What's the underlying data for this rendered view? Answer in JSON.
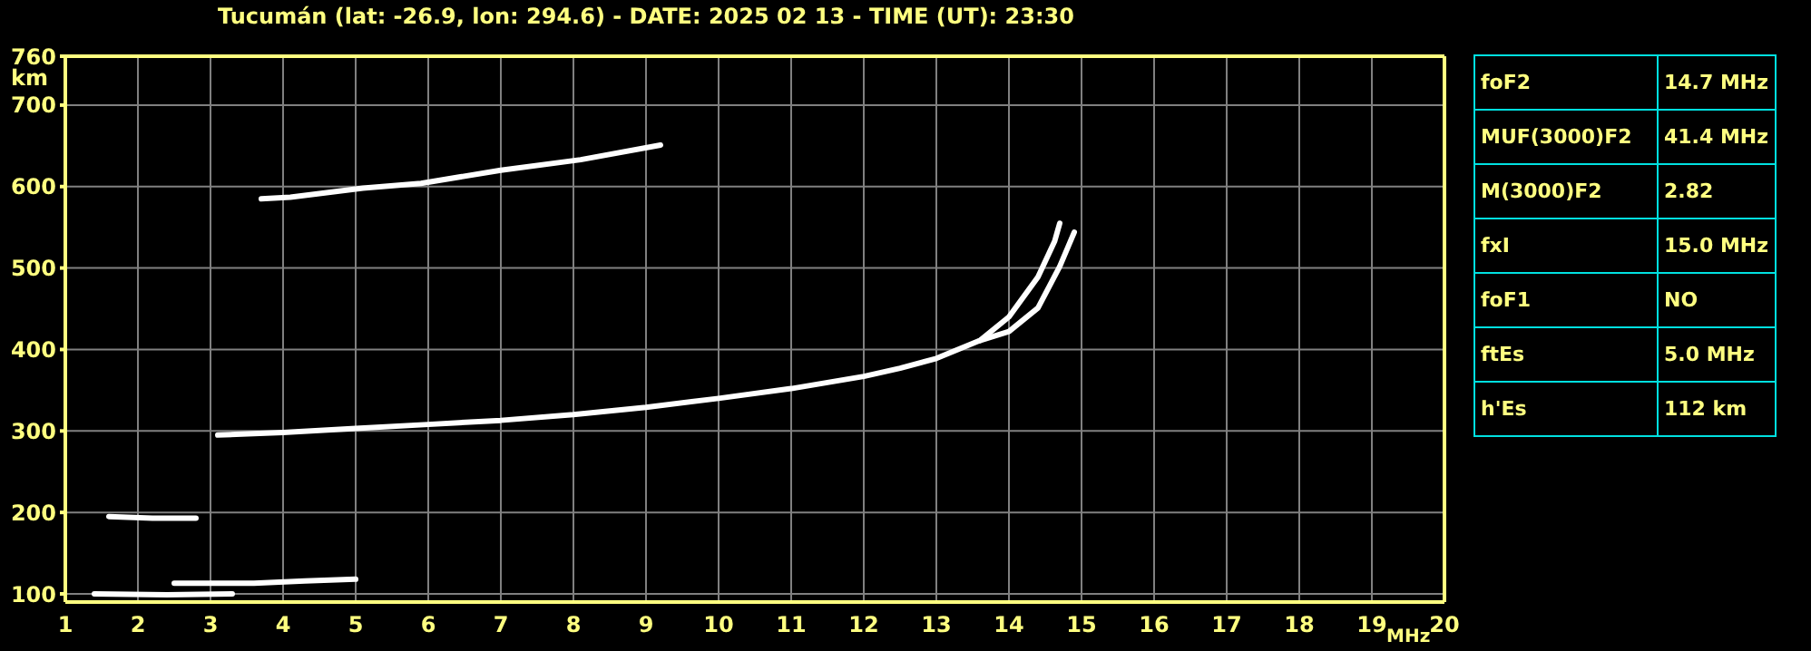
{
  "chart_data": {
    "type": "line",
    "title": "Tucumán (lat: -26.9, lon: 294.6) - DATE: 2025 02 13 - TIME (UT): 23:30",
    "xlabel": "MHz",
    "ylabel": "km",
    "xlim": [
      1,
      20
    ],
    "xticks": [
      1,
      2,
      3,
      4,
      5,
      6,
      7,
      8,
      9,
      10,
      11,
      12,
      13,
      14,
      15,
      16,
      17,
      18,
      19,
      20
    ],
    "ylim": [
      90,
      760
    ],
    "yticks": [
      100,
      200,
      300,
      400,
      500,
      600,
      700,
      760
    ],
    "grid": true,
    "series": [
      {
        "color": "#ffffff",
        "x": [
          3.1,
          4,
          5,
          6,
          7,
          8,
          9,
          10,
          11,
          12,
          12.5,
          13,
          13.6,
          14,
          14.4,
          14.63,
          14.7
        ],
        "values": [
          295,
          298,
          303,
          308,
          313,
          320,
          329,
          340,
          352,
          367,
          377,
          389,
          411,
          440,
          489,
          533,
          555
        ]
      },
      {
        "color": "#ffffff",
        "x": [
          13.6,
          14,
          14.4,
          14.7,
          14.9
        ],
        "values": [
          411,
          422,
          451,
          502,
          544
        ]
      },
      {
        "color": "#ffffff",
        "x": [
          3.7,
          4.1,
          5.1,
          5.9,
          7,
          8.1,
          9.2
        ],
        "values": [
          585,
          587,
          598,
          604,
          620,
          633,
          651
        ]
      },
      {
        "color": "#ffffff",
        "x": [
          1.6,
          2.2,
          2.8
        ],
        "values": [
          195,
          193,
          193
        ]
      },
      {
        "color": "#ffffff",
        "x": [
          1.4,
          2.4,
          3.3
        ],
        "values": [
          100,
          99,
          100
        ]
      },
      {
        "color": "#ffffff",
        "x": [
          2.5,
          3.6,
          4.3,
          5.0
        ],
        "values": [
          113,
          113,
          116,
          118
        ]
      }
    ],
    "annotations": [
      "foF2",
      "14.7 MHz",
      "MUF(3000)F2",
      "41.4 MHz",
      "M(3000)F2",
      "2.82",
      "fxI",
      "15.0 MHz",
      "foF1",
      "NO",
      "ftEs",
      "5.0 MHz",
      "h'Es",
      "112 km"
    ]
  }
}
